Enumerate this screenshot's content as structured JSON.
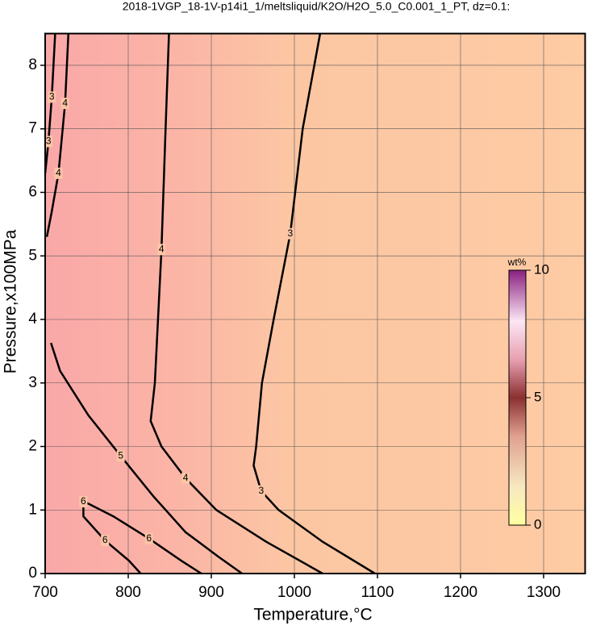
{
  "chart_data": {
    "type": "contour",
    "title": "2018-1VGP_18-1V-p14i1_1/meltsliquid/K2O/H2O_5.0_C0.001_1_PT, dz=0.1:",
    "xlabel": "Temperature,°C",
    "ylabel": "Pressure,x100MPa",
    "xlim": [
      700,
      1350
    ],
    "xticks": [
      700,
      800,
      900,
      1000,
      1100,
      1200,
      1300
    ],
    "ylim": [
      0,
      8.5
    ],
    "yticks": [
      0,
      1,
      2,
      3,
      4,
      5,
      6,
      7,
      8
    ],
    "grid": true,
    "colorbar": {
      "label": "wt%",
      "lim": [
        0,
        10
      ],
      "ticks": [
        0,
        5,
        10
      ]
    },
    "contours": [
      {
        "level": 3,
        "x": [
          1031,
          1010,
          995,
          975,
          961,
          954,
          951,
          960,
          981,
          1034,
          1097
        ],
        "y": [
          8.5,
          7,
          5.35,
          4,
          3,
          2,
          1.7,
          1.3,
          1,
          0.5,
          0
        ]
      },
      {
        "level": 4,
        "x": [
          849,
          845,
          840,
          832,
          827,
          840,
          869,
          906,
          966,
          1034
        ],
        "y": [
          8.5,
          7,
          5.1,
          3,
          2.4,
          2,
          1.5,
          1,
          0.5,
          0
        ]
      },
      {
        "level": 5,
        "x": [
          707,
          718,
          752,
          791,
          830,
          869,
          908,
          937
        ],
        "y": [
          3.63,
          3.19,
          2.49,
          1.85,
          1.22,
          0.65,
          0.27,
          0
        ]
      },
      {
        "level": 6,
        "x": [
          888,
          864,
          825,
          782,
          752,
          746,
          746,
          772,
          801,
          815
        ],
        "y": [
          0,
          0.2,
          0.55,
          0.9,
          1.1,
          1.13,
          0.9,
          0.52,
          0.2,
          0
        ]
      },
      {
        "level": 3,
        "x": [
          712,
          708,
          704,
          700
        ],
        "y": [
          8.5,
          7.5,
          6.8,
          6.3
        ]
      },
      {
        "level": 4,
        "x": [
          728,
          724,
          716,
          708,
          702
        ],
        "y": [
          8.5,
          7.4,
          6.3,
          5.7,
          5.3
        ]
      }
    ]
  }
}
